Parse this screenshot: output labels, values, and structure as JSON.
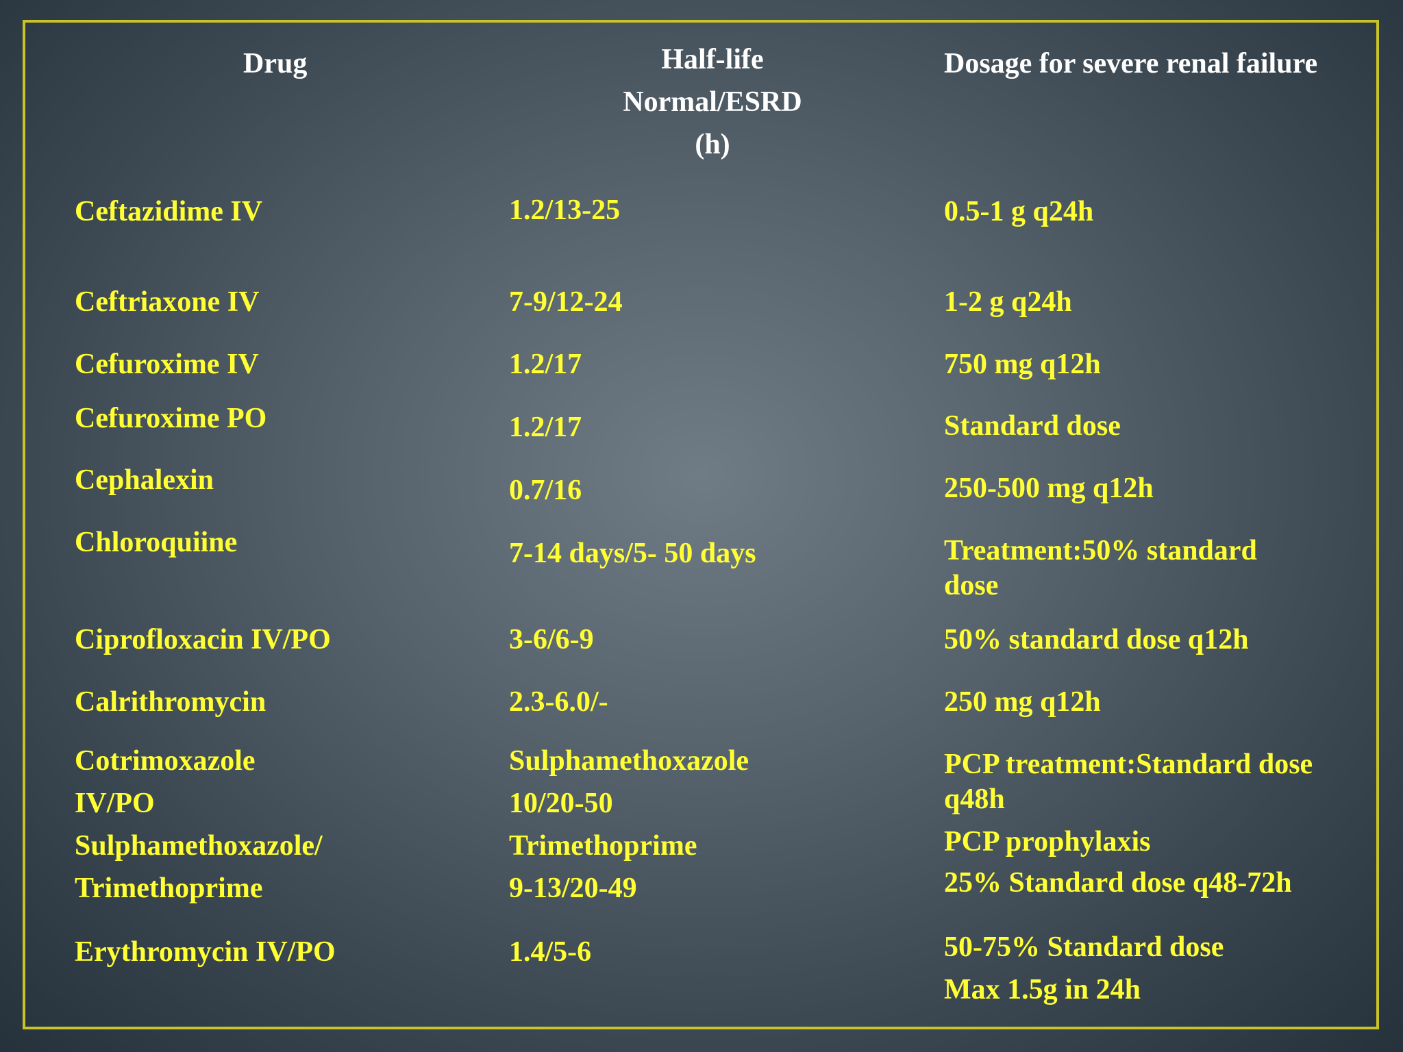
{
  "headers": {
    "drug": "Drug",
    "half_life_1": "Half-life",
    "half_life_2": "Normal/ESRD",
    "half_life_3": "(h)",
    "dosage": "Dosage for severe renal failure"
  },
  "rows": [
    {
      "drug": [
        "Ceftazidime IV"
      ],
      "half_life": [
        "1.2/13-25"
      ],
      "dosage": [
        "0.5-1 g q24h"
      ]
    },
    {
      "drug": [
        "Ceftriaxone IV"
      ],
      "half_life": [
        "7-9/12-24"
      ],
      "dosage": [
        "1-2 g q24h"
      ]
    },
    {
      "drug": [
        "Cefuroxime IV"
      ],
      "half_life": [
        "1.2/17"
      ],
      "dosage": [
        "750 mg q12h"
      ]
    },
    {
      "drug": [
        "Cefuroxime PO"
      ],
      "half_life": [
        "1.2/17"
      ],
      "dosage": [
        "Standard dose"
      ]
    },
    {
      "drug": [
        "Cephalexin"
      ],
      "half_life": [
        "0.7/16"
      ],
      "dosage": [
        "250-500 mg q12h"
      ]
    },
    {
      "drug": [
        "Chloroquiine"
      ],
      "half_life": [
        "7-14 days/5- 50 days"
      ],
      "dosage": [
        "Treatment:50% standard",
        "dose"
      ]
    },
    {
      "drug": [
        "Ciprofloxacin IV/PO"
      ],
      "half_life": [
        "3-6/6-9"
      ],
      "dosage": [
        "50% standard dose q12h"
      ]
    },
    {
      "drug": [
        "Calrithromycin"
      ],
      "half_life": [
        "2.3-6.0/-"
      ],
      "dosage": [
        "250 mg q12h"
      ]
    },
    {
      "drug": [
        "Cotrimoxazole",
        "IV/PO",
        "Sulphamethoxazole/",
        "Trimethoprime"
      ],
      "half_life": [
        "Sulphamethoxazole",
        "10/20-50",
        "Trimethoprime",
        "9-13/20-49"
      ],
      "dosage": [
        "PCP treatment:Standard dose",
        "q48h",
        "PCP prophylaxis",
        "25% Standard dose q48-72h"
      ]
    },
    {
      "drug": [
        "Erythromycin IV/PO"
      ],
      "half_life": [
        "1.4/5-6"
      ],
      "dosage": [
        "50-75% Standard dose",
        "Max 1.5g in 24h"
      ]
    }
  ]
}
